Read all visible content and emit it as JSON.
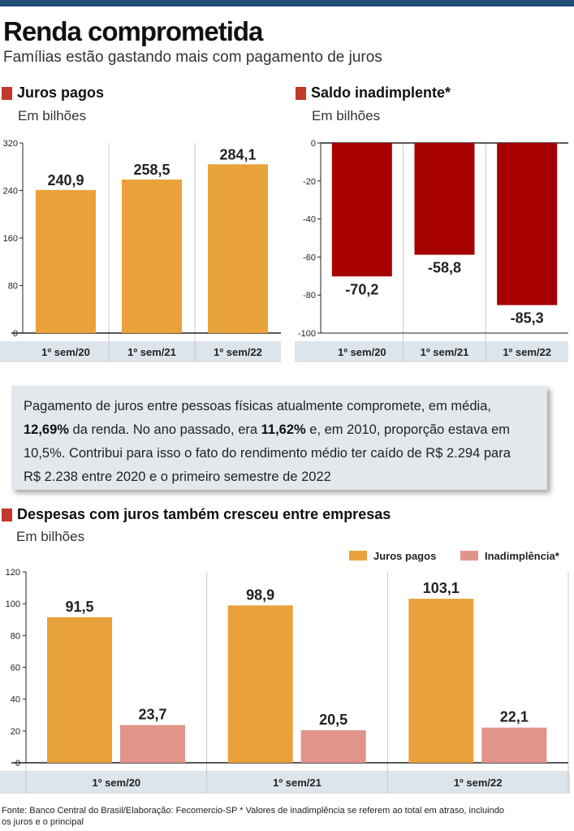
{
  "header": {
    "title": "Renda comprometida",
    "subtitle": "Famílias estão gastando mais com pagamento de juros"
  },
  "colors": {
    "orange": "#e9a23b",
    "red": "#a70000",
    "salmon": "#e0948a",
    "band": "#dde4ea",
    "accent": "#c0392b"
  },
  "chart_data": [
    {
      "type": "bar",
      "title": "Juros pagos",
      "unit_label": "Em bilhões",
      "categories": [
        "1º sem/20",
        "1º sem/21",
        "1º sem/22"
      ],
      "values": [
        240.9,
        258.5,
        284.1
      ],
      "value_labels": [
        "240,9",
        "258,5",
        "284,1"
      ],
      "yticks": [
        0,
        80,
        160,
        240,
        320
      ],
      "ylim": [
        0,
        320
      ]
    },
    {
      "type": "bar",
      "title": "Saldo inadimplente*",
      "unit_label": "Em bilhões",
      "categories": [
        "1º sem/20",
        "1º sem/21",
        "1º sem/22"
      ],
      "values": [
        -70.2,
        -58.8,
        -85.3
      ],
      "value_labels": [
        "-70,2",
        "-58,8",
        "-85,3"
      ],
      "yticks": [
        0,
        -20,
        -40,
        -60,
        -80,
        -100
      ],
      "ylim": [
        -100,
        0
      ]
    },
    {
      "type": "bar",
      "title": "Despesas com juros também cresceu entre empresas",
      "unit_label": "Em bilhões",
      "categories": [
        "1º sem/20",
        "1º sem/21",
        "1º sem/22"
      ],
      "series": [
        {
          "name": "Juros pagos",
          "values": [
            91.5,
            98.9,
            103.1
          ],
          "value_labels": [
            "91,5",
            "98,9",
            "103,1"
          ]
        },
        {
          "name": "Inadimplência*",
          "values": [
            23.7,
            20.5,
            22.1
          ],
          "value_labels": [
            "23,7",
            "20,5",
            "22,1"
          ]
        }
      ],
      "yticks": [
        0,
        20,
        40,
        60,
        80,
        100,
        120
      ],
      "ylim": [
        0,
        120
      ],
      "legend": "top-right"
    }
  ],
  "info": {
    "p1": "Pagamento de juros entre pessoas físicas atualmente compromete, em média,",
    "b1": "12,69%",
    "p2": " da renda. No ano passado, era ",
    "b2": "11,62%",
    "p3": " e, em 2010, proporção estava em",
    "p4": "10,5%. Contribui para isso o fato do rendimento médio ter caído de R$ 2.294 para",
    "p5": "R$ 2.238 entre 2020 e o primeiro semestre de 2022"
  },
  "footer": {
    "line1": "Fonte: Banco Central do Brasil/Elaboração: Fecomercio-SP  * Valores de inadimplência se referem ao total em atraso, incluindo",
    "line2": "os juros e o principal"
  }
}
